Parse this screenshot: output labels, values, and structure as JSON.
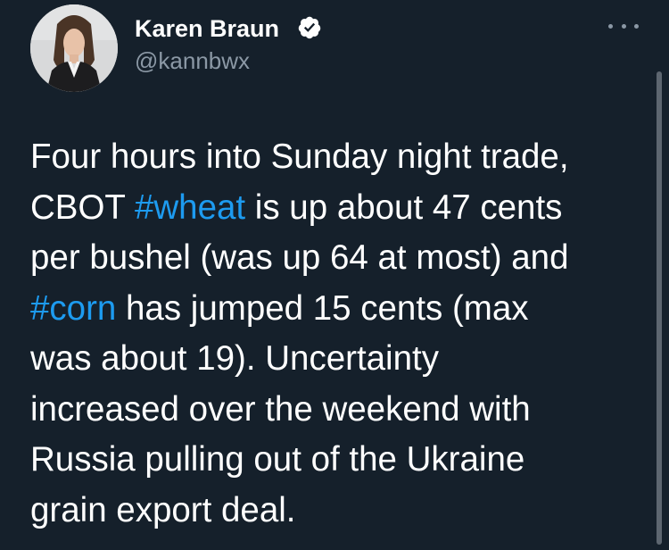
{
  "tweet": {
    "author_name": "Karen Braun",
    "author_handle": "@kannbwx",
    "verified_icon": "verified-badge-icon",
    "more_icon": "more-options-icon",
    "lines": [
      {
        "segments": [
          {
            "text": "Four hours into Sunday night trade,",
            "type": "text"
          }
        ]
      },
      {
        "segments": [
          {
            "text": "CBOT ",
            "type": "text"
          },
          {
            "text": "#wheat",
            "type": "hashtag"
          },
          {
            "text": " is up about 47 cents",
            "type": "text"
          }
        ]
      },
      {
        "segments": [
          {
            "text": "per bushel (was up 64 at most) and",
            "type": "text"
          }
        ]
      },
      {
        "segments": [
          {
            "text": "#corn",
            "type": "hashtag"
          },
          {
            "text": " has jumped 15 cents (max",
            "type": "text"
          }
        ]
      },
      {
        "segments": [
          {
            "text": "was about 19). Uncertainty",
            "type": "text"
          }
        ]
      },
      {
        "segments": [
          {
            "text": "increased over the weekend with",
            "type": "text"
          }
        ]
      },
      {
        "segments": [
          {
            "text": "Russia pulling out of the Ukraine",
            "type": "text"
          }
        ]
      },
      {
        "segments": [
          {
            "text": "grain export deal.",
            "type": "text"
          }
        ]
      }
    ]
  },
  "colors": {
    "background": "#15202b",
    "text": "#ffffff",
    "secondary": "#8b98a5",
    "hashtag": "#1d9bf0"
  }
}
